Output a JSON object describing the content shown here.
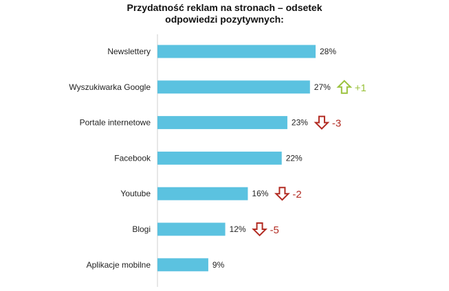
{
  "chart_data": {
    "type": "bar",
    "orientation": "horizontal",
    "title_lines": [
      "Przydatność reklam na stronach – odsetek",
      "odpowiedzi pozytywnych:"
    ],
    "categories": [
      "Newslettery",
      "Wyszukiwarka Google",
      "Portale internetowe",
      "Facebook",
      "Youtube",
      "Blogi",
      "Aplikacje mobilne"
    ],
    "values": [
      28,
      27,
      23,
      22,
      16,
      12,
      9
    ],
    "value_labels": [
      "28%",
      "27%",
      "23%",
      "22%",
      "16%",
      "12%",
      "9%"
    ],
    "changes": [
      {
        "category": "Wyszukiwarka Google",
        "direction": "up",
        "label": "+1"
      },
      {
        "category": "Portale internetowe",
        "direction": "down",
        "label": "-3"
      },
      {
        "category": "Youtube",
        "direction": "down",
        "label": "-2"
      },
      {
        "category": "Blogi",
        "direction": "down",
        "label": "-5"
      }
    ],
    "xlim": [
      0,
      28
    ],
    "grid": false,
    "legend": "none",
    "colors": {
      "bar": "#5bc2e0",
      "up": "#9ac23c",
      "down": "#b22b22",
      "axis": "#cfcfcf"
    }
  }
}
